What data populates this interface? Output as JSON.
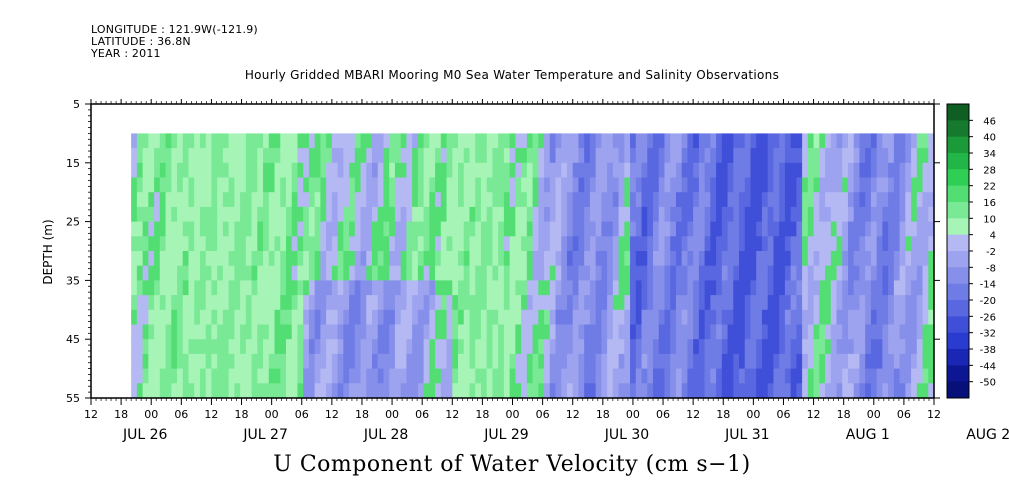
{
  "header": {
    "longitude_line": "LONGITUDE : 121.9W(-121.9)",
    "latitude_line": "LATITUDE : 36.8N",
    "year_line": "YEAR : 2011",
    "title": "Hourly Gridded MBARI Mooring M0 Sea Water Temperature and Salinity Observations"
  },
  "chart_data": {
    "type": "heatmap",
    "title": "Hourly Gridded MBARI Mooring M0 Sea Water Temperature and Salinity Observations",
    "variable_label": "U Component of Water Velocity (cm s−1)",
    "ylabel": "DEPTH (m)",
    "ylim": [
      5,
      55
    ],
    "y_inverted": true,
    "y_ticks": [
      5,
      15,
      25,
      35,
      45,
      55
    ],
    "data_depth_range": [
      10,
      55
    ],
    "x_hour_labels": [
      "12",
      "18",
      "00",
      "06",
      "12",
      "18",
      "00",
      "06",
      "12",
      "18",
      "00",
      "06",
      "12",
      "18",
      "00",
      "06",
      "12",
      "18",
      "00",
      "06",
      "12",
      "18",
      "00",
      "06",
      "12",
      "18",
      "00",
      "06",
      "12"
    ],
    "x_day_labels": [
      {
        "label": "JUL 26",
        "day_index": 0
      },
      {
        "label": "JUL 27",
        "day_index": 1
      },
      {
        "label": "JUL 28",
        "day_index": 2
      },
      {
        "label": "JUL 29",
        "day_index": 3
      },
      {
        "label": "JUL 30",
        "day_index": 4
      },
      {
        "label": "JUL 31",
        "day_index": 5
      },
      {
        "label": "AUG  1",
        "day_index": 6
      },
      {
        "label": "AUG  2",
        "day_index": 7
      }
    ],
    "x_range_hours": [
      -12,
      156
    ],
    "data_start_hour": -4,
    "colorbar": {
      "labels": [
        "46",
        "40",
        "34",
        "28",
        "22",
        "16",
        "10",
        "4",
        "-2",
        "-8",
        "-14",
        "-20",
        "-26",
        "-32",
        "-38",
        "-44",
        "-50"
      ],
      "colors": [
        "#0f5f24",
        "#157a2e",
        "#1b9a3a",
        "#22b548",
        "#2fcf55",
        "#53de74",
        "#7ae996",
        "#a6f4b6",
        "#b4b8f3",
        "#9da3ef",
        "#8690ea",
        "#6f7ce5",
        "#5968e0",
        "#3f4fd8",
        "#2a3bd0",
        "#1a26b4",
        "#0d1794",
        "#061078"
      ],
      "sign_values": [
        "positive",
        "negative"
      ]
    }
  }
}
